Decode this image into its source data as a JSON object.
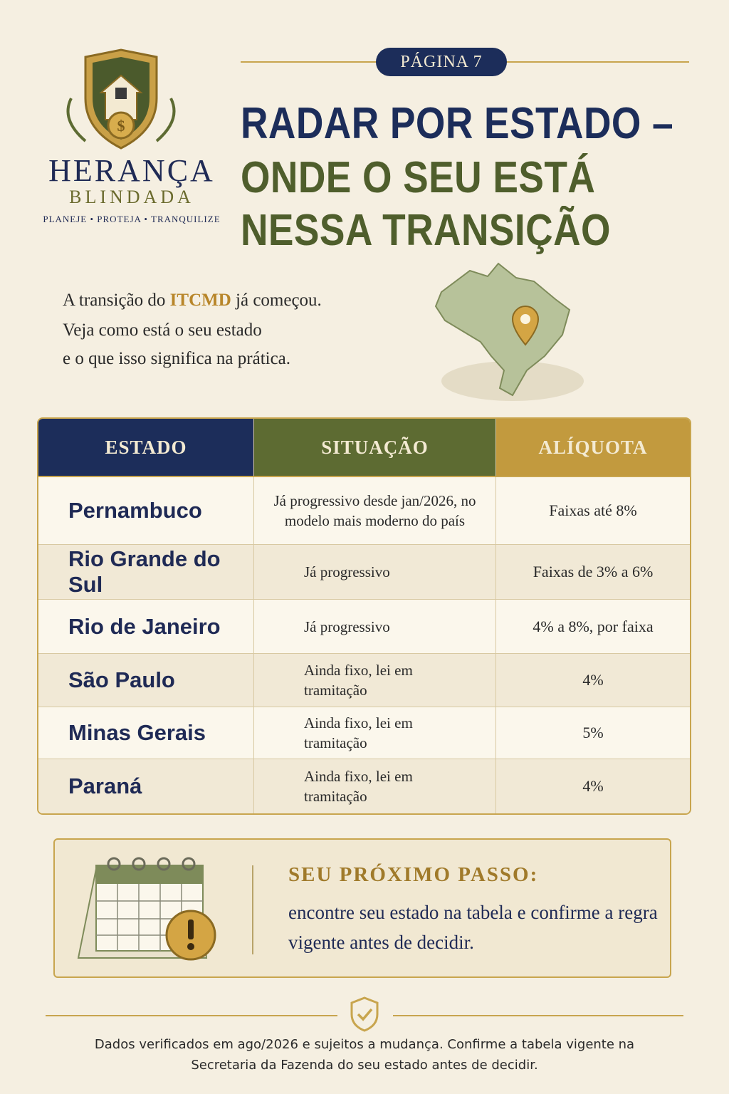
{
  "logo": {
    "brand": "HERANÇA",
    "subbrand": "BLINDADA",
    "tagline": "PLANEJE • PROTEJA • TRANQUILIZE"
  },
  "header": {
    "badge": "PÁGINA 7",
    "title_lines": [
      "RADAR POR ESTADO –",
      "ONDE O SEU ESTÁ",
      "NESSA TRANSIÇÃO"
    ]
  },
  "intro": {
    "line1_before": "A transição do ",
    "line1_highlight": "ITCMD",
    "line1_after": " já começou.",
    "line2": "Veja como está o seu estado",
    "line3": "e o que isso significa na prática."
  },
  "table": {
    "headers": [
      "ESTADO",
      "SITUAÇÃO",
      "ALÍQUOTA"
    ],
    "rows": [
      [
        "Pernambuco",
        "Já progressivo desde jan/2026, no modelo mais moderno do país",
        "Faixas até 8%"
      ],
      [
        "Rio Grande do Sul",
        "Já progressivo",
        "Faixas de 3% a 6%"
      ],
      [
        "Rio de Janeiro",
        "Já progressivo",
        "4% a 8%, por faixa"
      ],
      [
        "São Paulo",
        "Ainda fixo, lei em tramitação",
        "4%"
      ],
      [
        "Minas Gerais",
        "Ainda fixo, lei em tramitação",
        "5%"
      ],
      [
        "Paraná",
        "Ainda fixo, lei em tramitação",
        "4%"
      ]
    ]
  },
  "callout": {
    "title": "SEU PRÓXIMO PASSO:",
    "text": "encontre seu estado na tabela e confirme a regra vigente antes de decidir."
  },
  "footer": {
    "note": "Dados verificados em ago/2026 e sujeitos a mudança. Confirme a tabela vigente na Secretaria da Fazenda do seu estado antes de decidir."
  }
}
